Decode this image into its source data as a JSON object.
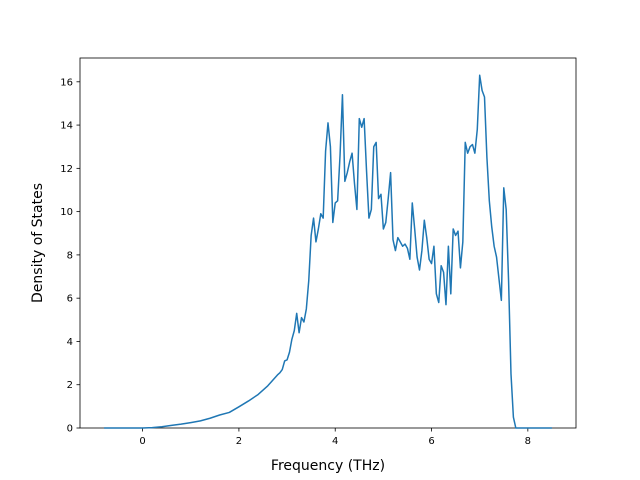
{
  "chart_data": {
    "type": "line",
    "title": "",
    "xlabel": "Frequency (THz)",
    "ylabel": "Density of States",
    "xlim": [
      -1.3,
      9.0
    ],
    "ylim": [
      0,
      17.1
    ],
    "x_ticks": [
      0,
      2,
      4,
      6,
      8
    ],
    "y_ticks": [
      0,
      2,
      4,
      6,
      8,
      10,
      12,
      14,
      16
    ],
    "grid": false,
    "legend": "none",
    "series": [
      {
        "color": "#1f77b4",
        "x": [
          -0.8,
          -0.4,
          0.0,
          0.2,
          0.4,
          0.6,
          0.8,
          1.0,
          1.2,
          1.4,
          1.6,
          1.8,
          2.0,
          2.2,
          2.4,
          2.6,
          2.7,
          2.8,
          2.85,
          2.9,
          2.95,
          3.0,
          3.05,
          3.1,
          3.15,
          3.2,
          3.25,
          3.3,
          3.35,
          3.4,
          3.45,
          3.5,
          3.55,
          3.6,
          3.65,
          3.7,
          3.75,
          3.8,
          3.85,
          3.9,
          3.95,
          4.0,
          4.05,
          4.1,
          4.15,
          4.2,
          4.25,
          4.3,
          4.35,
          4.4,
          4.45,
          4.5,
          4.55,
          4.6,
          4.65,
          4.7,
          4.75,
          4.8,
          4.85,
          4.9,
          4.95,
          5.0,
          5.05,
          5.1,
          5.15,
          5.2,
          5.25,
          5.3,
          5.35,
          5.4,
          5.45,
          5.5,
          5.55,
          5.6,
          5.65,
          5.7,
          5.75,
          5.8,
          5.85,
          5.9,
          5.95,
          6.0,
          6.05,
          6.1,
          6.15,
          6.2,
          6.25,
          6.3,
          6.35,
          6.4,
          6.45,
          6.5,
          6.55,
          6.6,
          6.65,
          6.7,
          6.75,
          6.8,
          6.85,
          6.9,
          6.95,
          7.0,
          7.05,
          7.1,
          7.15,
          7.2,
          7.25,
          7.3,
          7.35,
          7.4,
          7.45,
          7.5,
          7.55,
          7.6,
          7.65,
          7.7,
          7.75,
          7.8,
          8.0,
          8.2,
          8.5
        ],
        "y": [
          0,
          0,
          0,
          0.02,
          0.06,
          0.12,
          0.18,
          0.25,
          0.33,
          0.45,
          0.6,
          0.72,
          0.98,
          1.25,
          1.55,
          1.95,
          2.2,
          2.45,
          2.55,
          2.7,
          3.1,
          3.15,
          3.5,
          4.1,
          4.5,
          5.3,
          4.4,
          5.1,
          4.9,
          5.5,
          6.8,
          8.9,
          9.7,
          8.6,
          9.2,
          9.9,
          9.7,
          12.8,
          14.1,
          13.0,
          9.5,
          10.4,
          10.5,
          12.6,
          15.4,
          11.4,
          11.8,
          12.3,
          12.7,
          11.3,
          10.1,
          14.3,
          13.9,
          14.3,
          11.9,
          9.7,
          10.1,
          13.0,
          13.2,
          10.6,
          10.8,
          9.2,
          9.5,
          10.6,
          11.8,
          8.7,
          8.2,
          8.8,
          8.6,
          8.4,
          8.5,
          8.3,
          7.8,
          10.4,
          9.2,
          7.9,
          7.3,
          8.2,
          9.6,
          8.8,
          7.8,
          7.6,
          8.4,
          6.2,
          5.8,
          7.5,
          7.2,
          5.7,
          8.4,
          6.2,
          9.2,
          8.9,
          9.1,
          7.4,
          8.6,
          13.2,
          12.7,
          13.0,
          13.1,
          12.7,
          13.8,
          16.3,
          15.6,
          15.3,
          12.5,
          10.5,
          9.3,
          8.4,
          7.9,
          6.9,
          5.9,
          11.1,
          10.1,
          6.8,
          2.5,
          0.5,
          0,
          0,
          0,
          0,
          0
        ]
      }
    ]
  }
}
